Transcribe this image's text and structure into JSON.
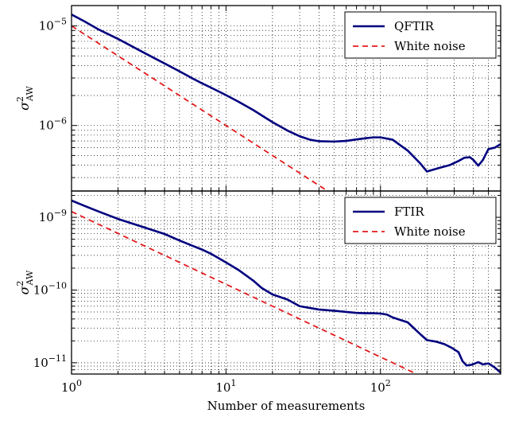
{
  "colors": {
    "series_primary": "#00007f",
    "white_noise": "#e31a1c",
    "grid": "#000000",
    "axes": "#000000",
    "background": "#ffffff"
  },
  "chart_data": [
    {
      "type": "line",
      "panel": "top",
      "xscale": "log",
      "yscale": "log",
      "xlim": [
        1,
        600
      ],
      "ylim": [
        2.2e-07,
        1.6e-05
      ],
      "ylabel": "σ²AW",
      "ylabel_main": "σ",
      "ylabel_sup": "2",
      "ylabel_sub": "AW",
      "xlabel": "",
      "grid": true,
      "legend_position": "top-right",
      "yticks": [
        {
          "value": 1e-05,
          "base": "10",
          "exp": "−5"
        },
        {
          "value": 1e-06,
          "base": "10",
          "exp": "−6"
        }
      ],
      "series": [
        {
          "name": "QFTIR",
          "style": "solid",
          "x": [
            1,
            1.2,
            1.5,
            2,
            3,
            4,
            5,
            6,
            7,
            8,
            10,
            12,
            15,
            20,
            25,
            30,
            35,
            40,
            50,
            60,
            70,
            80,
            90,
            100,
            120,
            150,
            180,
            200,
            240,
            280,
            320,
            350,
            380,
            400,
            430,
            460,
            500,
            550,
            600
          ],
          "y": [
            1.3e-05,
            1.12e-05,
            9.2e-06,
            7.4e-06,
            5.3e-06,
            4.2e-06,
            3.5e-06,
            3e-06,
            2.65e-06,
            2.4e-06,
            2.02e-06,
            1.74e-06,
            1.43e-06,
            1.08e-06,
            8.9e-07,
            7.8e-07,
            7.2e-07,
            6.95e-07,
            6.9e-07,
            7e-07,
            7.25e-07,
            7.45e-07,
            7.6e-07,
            7.6e-07,
            7.2e-07,
            5.6e-07,
            4.2e-07,
            3.45e-07,
            3.75e-07,
            4e-07,
            4.4e-07,
            4.75e-07,
            4.8e-07,
            4.5e-07,
            3.95e-07,
            4.5e-07,
            5.8e-07,
            6e-07,
            6.5e-07
          ]
        },
        {
          "name": "White noise",
          "style": "dashed",
          "x": [
            1,
            600
          ],
          "y": [
            1e-05,
            1.6667e-08
          ]
        }
      ]
    },
    {
      "type": "line",
      "panel": "bottom",
      "xscale": "log",
      "yscale": "log",
      "xlim": [
        1,
        600
      ],
      "ylim": [
        7e-12,
        2.3e-09
      ],
      "ylabel": "σ²AW",
      "ylabel_main": "σ",
      "ylabel_sup": "2",
      "ylabel_sub": "AW",
      "xlabel": "Number of measurements",
      "grid": true,
      "legend_position": "top-right",
      "yticks": [
        {
          "value": 1e-09,
          "base": "10",
          "exp": "−9"
        },
        {
          "value": 1e-10,
          "base": "10",
          "exp": "−10"
        },
        {
          "value": 1e-11,
          "base": "10",
          "exp": "−11"
        }
      ],
      "xticks": [
        {
          "value": 1,
          "base": "10",
          "exp": "0"
        },
        {
          "value": 10,
          "base": "10",
          "exp": "1"
        },
        {
          "value": 100,
          "base": "10",
          "exp": "2"
        }
      ],
      "series": [
        {
          "name": "FTIR",
          "style": "solid",
          "x": [
            1,
            1.2,
            1.5,
            2,
            3,
            4,
            5,
            6,
            7,
            8,
            10,
            12,
            15,
            17,
            20,
            25,
            30,
            40,
            50,
            60,
            70,
            80,
            90,
            100,
            110,
            120,
            150,
            180,
            200,
            230,
            260,
            290,
            320,
            340,
            360,
            380,
            400,
            430,
            460,
            500,
            550,
            600
          ],
          "y": [
            1.7e-09,
            1.45e-09,
            1.2e-09,
            9.5e-10,
            7.2e-10,
            5.9e-10,
            4.8e-10,
            4.1e-10,
            3.6e-10,
            3.15e-10,
            2.4e-10,
            1.9e-10,
            1.35e-10,
            1.07e-10,
            8.7e-11,
            7.4e-11,
            6e-11,
            5.4e-11,
            5.2e-11,
            5e-11,
            4.85e-11,
            4.8e-11,
            4.8e-11,
            4.75e-11,
            4.6e-11,
            4.2e-11,
            3.6e-11,
            2.5e-11,
            2.05e-11,
            1.95e-11,
            1.8e-11,
            1.6e-11,
            1.4e-11,
            1.05e-11,
            9.2e-12,
            9.3e-12,
            9.6e-12,
            1.02e-11,
            9.5e-12,
            9.8e-12,
            8.6e-12,
            7.3e-12
          ]
        },
        {
          "name": "White noise",
          "style": "dashed",
          "x": [
            1,
            600
          ],
          "y": [
            1.2e-09,
            2e-12
          ]
        }
      ]
    }
  ]
}
